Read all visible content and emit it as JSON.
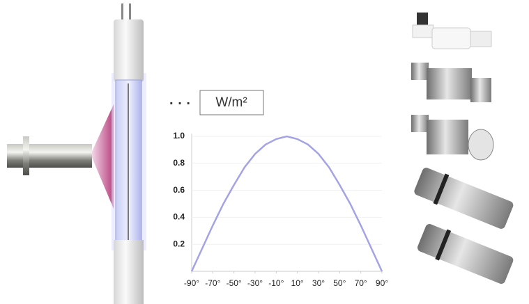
{
  "chart_data": {
    "type": "line",
    "dots": "· · ·",
    "unit_label": "W/m²",
    "x": [
      -90,
      -80,
      -70,
      -60,
      -50,
      -40,
      -30,
      -20,
      -10,
      0,
      10,
      20,
      30,
      40,
      50,
      60,
      70,
      80,
      90
    ],
    "series": [
      {
        "color": "#a3a3e6",
        "values": [
          0,
          0.17,
          0.34,
          0.5,
          0.64,
          0.77,
          0.87,
          0.94,
          0.98,
          1.0,
          0.98,
          0.94,
          0.87,
          0.77,
          0.64,
          0.5,
          0.34,
          0.17,
          0
        ]
      }
    ],
    "xlim": [
      -90,
      90
    ],
    "xticks": [
      {
        "value": -90,
        "label": "-90°"
      },
      {
        "value": -70,
        "label": "-70°"
      },
      {
        "value": -50,
        "label": "-50°"
      },
      {
        "value": -30,
        "label": "-30°"
      },
      {
        "value": -10,
        "label": "-10°"
      },
      {
        "value": 10,
        "label": "10°"
      },
      {
        "value": 30,
        "label": "30°"
      },
      {
        "value": 50,
        "label": "50°"
      },
      {
        "value": 70,
        "label": "70°"
      },
      {
        "value": 90,
        "label": "90°"
      }
    ],
    "ylim": [
      0,
      1
    ],
    "yticks": [
      0.2,
      0.4,
      0.6,
      0.8,
      {
        "value": 1,
        "label": "1.0"
      }
    ]
  }
}
